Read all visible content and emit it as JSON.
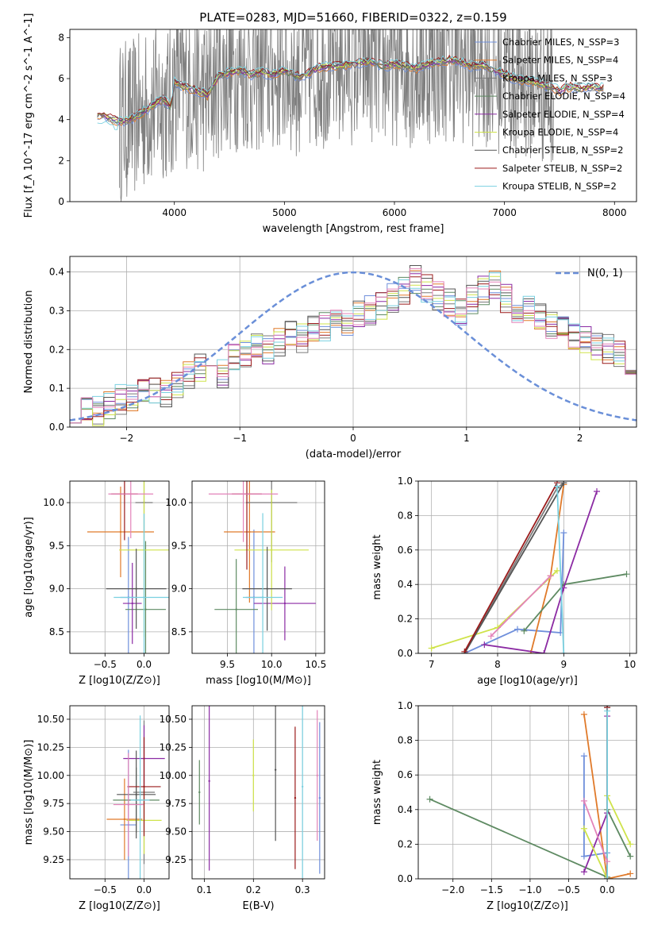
{
  "colors": [
    "#6f8fdb",
    "#e07a2a",
    "#7a7a7a",
    "#5e8a62",
    "#8b2aa3",
    "#cfe34a",
    "#555555",
    "#9b1b1b",
    "#79d0e0",
    "#e383b9"
  ],
  "chart_data": [
    {
      "type": "line",
      "title": "PLATE=0283, MJD=51660, FIBERID=0322, z=0.159",
      "xlabel": "wavelength [Angstrom, rest frame]",
      "ylabel": "Flux [f_λ 10^-17 erg cm^-2 s^-1 A^-1]",
      "xlim": [
        3050,
        8200
      ],
      "ylim": [
        0,
        8.4
      ],
      "xticks": [
        "4000",
        "5000",
        "6000",
        "7000",
        "8000"
      ],
      "yticks": [
        "0",
        "2",
        "4",
        "6",
        "8"
      ],
      "legend_position": "upper right",
      "legend": [
        "Chabrier MILES, N_SSP=3",
        "Salpeter MILES, N_SSP=4",
        "Kroupa MILES, N_SSP=3",
        "Chabrier ELODIE, N_SSP=4",
        "Salpeter ELODIE, N_SSP=4",
        "Kroupa ELODIE, N_SSP=4",
        "Chabrier STELIB, N_SSP=2",
        "Salpeter STELIB, N_SSP=2",
        "Kroupa STELIB, N_SSP=2"
      ],
      "data_note": "observed spectrum (gray, noisy) with model continua around flux 4-7",
      "model_x": [
        3300,
        3400,
        3500,
        3600,
        3700,
        3800,
        3900,
        3970,
        4000,
        4100,
        4200,
        4300,
        4400,
        4500,
        4600,
        4700,
        4800,
        4900,
        5000,
        5100,
        5200,
        5300,
        5400,
        5500,
        5600,
        5700,
        5800,
        5900,
        6000,
        6100,
        6200,
        6300,
        6400,
        6500,
        6600,
        6700,
        6800,
        6900,
        7000,
        7100,
        7200,
        7300,
        7400,
        7500,
        7600,
        7700,
        7800,
        7900
      ],
      "model_y": [
        4.3,
        4.1,
        3.9,
        4.0,
        4.3,
        4.7,
        5.0,
        4.6,
        5.8,
        5.6,
        5.4,
        5.2,
        6.1,
        6.3,
        6.4,
        6.2,
        6.3,
        6.2,
        6.4,
        6.1,
        6.2,
        6.5,
        6.6,
        6.6,
        6.7,
        6.8,
        6.8,
        6.6,
        6.7,
        6.6,
        6.5,
        6.7,
        6.8,
        6.9,
        6.8,
        6.6,
        6.7,
        6.4,
        6.2,
        6.0,
        5.9,
        5.8,
        5.6,
        5.4,
        5.6,
        5.5,
        5.6,
        5.5
      ]
    },
    {
      "type": "bar",
      "xlabel": "(data-model)/error",
      "ylabel": "Normed distribution",
      "xlim": [
        -2.5,
        2.5
      ],
      "ylim": [
        0,
        0.44
      ],
      "xticks": [
        "−2",
        "−1",
        "0",
        "1",
        "2"
      ],
      "yticks": [
        "0.0",
        "0.1",
        "0.2",
        "0.3",
        "0.4"
      ],
      "legend": [
        "N(0, 1)"
      ],
      "legend_position": "upper right",
      "bin_width": 0.1,
      "bin_start": -2.5,
      "histogram_values": [
        0.05,
        0.05,
        0.04,
        0.06,
        0.07,
        0.08,
        0.09,
        0.1,
        0.09,
        0.11,
        0.13,
        0.15,
        0.16,
        0.14,
        0.18,
        0.19,
        0.21,
        0.2,
        0.22,
        0.24,
        0.23,
        0.25,
        0.26,
        0.28,
        0.27,
        0.29,
        0.3,
        0.31,
        0.33,
        0.35,
        0.38,
        0.36,
        0.34,
        0.32,
        0.3,
        0.33,
        0.35,
        0.37,
        0.33,
        0.3,
        0.31,
        0.29,
        0.26,
        0.27,
        0.24,
        0.22,
        0.21,
        0.2,
        0.19,
        0.17,
        0.16
      ]
    },
    {
      "type": "scatter",
      "xlabel": "Z [log10(Z/Z⊙)]",
      "ylabel": "age  [log10(age/yr)]",
      "xlim": [
        -0.95,
        0.32
      ],
      "ylim": [
        8.25,
        10.25
      ],
      "xticks": [
        "−0.5",
        "0.0"
      ],
      "yticks": [
        "8.5",
        "9.0",
        "9.5",
        "10.0"
      ],
      "points": [
        [
          -0.2,
          8.9
        ],
        [
          -0.3,
          9.66
        ],
        [
          0.0,
          10.0
        ],
        [
          0.02,
          8.76
        ],
        [
          -0.15,
          8.83
        ],
        [
          0.0,
          9.45
        ],
        [
          -0.1,
          9.0
        ],
        [
          -0.25,
          10.1
        ],
        [
          0.0,
          8.9
        ],
        [
          -0.17,
          10.1
        ]
      ]
    },
    {
      "type": "scatter",
      "xlabel": "mass [log10(M/M⊙)]",
      "ylabel": "",
      "xlim": [
        9.1,
        10.6
      ],
      "ylim": [
        8.25,
        10.25
      ],
      "xticks": [
        "9.5",
        "10.0",
        "10.5"
      ],
      "yticks": [
        "8.5",
        "9.0",
        "9.5",
        "10.0"
      ],
      "points": [
        [
          9.8,
          8.9
        ],
        [
          9.75,
          9.66
        ],
        [
          10.0,
          10.0
        ],
        [
          9.6,
          8.76
        ],
        [
          10.15,
          8.83
        ],
        [
          10.0,
          9.45
        ],
        [
          9.95,
          9.0
        ],
        [
          9.72,
          10.1
        ],
        [
          9.9,
          8.9
        ],
        [
          9.68,
          10.1
        ]
      ]
    },
    {
      "type": "line",
      "xlabel": "age  [log10(age/yr)]",
      "ylabel": "mass weight",
      "xlim": [
        6.8,
        10.1
      ],
      "ylim": [
        0,
        1
      ],
      "xticks": [
        "7",
        "8",
        "9",
        "10"
      ],
      "yticks": [
        "0.0",
        "0.2",
        "0.4",
        "0.6",
        "0.8",
        "1.0"
      ],
      "series": [
        {
          "x": [
            7.5,
            8.3,
            8.95,
            9.0
          ],
          "y": [
            0.0,
            0.14,
            0.12,
            0.7
          ]
        },
        {
          "x": [
            8.5,
            8.8,
            9.0
          ],
          "y": [
            0.0,
            0.45,
            0.98
          ]
        },
        {
          "x": [
            7.5,
            8.9,
            9.0
          ],
          "y": [
            0.0,
            0.96,
            0.99
          ]
        },
        {
          "x": [
            8.4,
            9.0,
            9.95
          ],
          "y": [
            0.13,
            0.4,
            0.46
          ]
        },
        {
          "x": [
            7.8,
            8.7,
            9.0,
            9.5
          ],
          "y": [
            0.05,
            0.0,
            0.38,
            0.94
          ]
        },
        {
          "x": [
            7.0,
            8.0,
            8.9
          ],
          "y": [
            0.03,
            0.15,
            0.48
          ]
        },
        {
          "x": [
            7.5,
            9.0
          ],
          "y": [
            0.0,
            0.99
          ]
        },
        {
          "x": [
            7.5,
            8.9
          ],
          "y": [
            0.01,
            0.99
          ]
        },
        {
          "x": [
            8.9,
            9.0
          ],
          "y": [
            0.97,
            0.0
          ]
        },
        {
          "x": [
            7.9,
            8.8
          ],
          "y": [
            0.1,
            0.45
          ]
        }
      ]
    },
    {
      "type": "scatter",
      "xlabel": "Z [log10(Z/Z⊙)]",
      "ylabel": "mass [log10(M/M⊙)]",
      "xlim": [
        -0.95,
        0.32
      ],
      "ylim": [
        9.08,
        10.62
      ],
      "xticks": [
        "−0.5",
        "0.0"
      ],
      "yticks": [
        "9.25",
        "9.50",
        "9.75",
        "10.00",
        "10.25",
        "10.50"
      ],
      "points": [
        [
          -0.2,
          9.56
        ],
        [
          -0.25,
          9.61
        ],
        [
          0.0,
          9.85
        ],
        [
          -0.1,
          9.78
        ],
        [
          0.0,
          10.15
        ],
        [
          0.0,
          9.6
        ],
        [
          -0.1,
          9.83
        ],
        [
          0.0,
          9.9
        ],
        [
          -0.05,
          9.78
        ],
        [
          -0.2,
          9.74
        ]
      ]
    },
    {
      "type": "scatter",
      "xlabel": "E(B-V)",
      "ylabel": "",
      "xlim": [
        0.075,
        0.345
      ],
      "ylim": [
        9.08,
        10.62
      ],
      "xticks": [
        "0.1",
        "0.2",
        "0.3"
      ],
      "yticks": [
        "9.25",
        "9.50",
        "9.75",
        "10.00",
        "10.25",
        "10.50"
      ],
      "points": [
        [
          0.09,
          9.85
        ],
        [
          0.11,
          9.95
        ],
        [
          0.2,
          10.0
        ],
        [
          0.245,
          10.05
        ],
        [
          0.285,
          9.8
        ],
        [
          0.3,
          9.9
        ],
        [
          0.33,
          10.0
        ],
        [
          0.335,
          9.8
        ]
      ]
    },
    {
      "type": "line",
      "xlabel": "Z [log10(Z/Z⊙)]",
      "ylabel": "mass weight",
      "xlim": [
        -2.45,
        0.38
      ],
      "ylim": [
        0,
        1
      ],
      "xticks": [
        "−2.0",
        "−1.5",
        "−1.0",
        "−0.5",
        "0.0"
      ],
      "yticks": [
        "0.0",
        "0.2",
        "0.4",
        "0.6",
        "0.8",
        "1.0"
      ],
      "series": [
        {
          "x": [
            -0.3,
            -0.3,
            0.0,
            0.0
          ],
          "y": [
            0.71,
            0.13,
            0.15,
            0.0
          ]
        },
        {
          "x": [
            -0.3,
            0.0,
            0.3
          ],
          "y": [
            0.95,
            0.0,
            0.03
          ]
        },
        {
          "x": [
            0.0,
            0.0
          ],
          "y": [
            1.0,
            0.0
          ]
        },
        {
          "x": [
            -2.3,
            0.0,
            0.0,
            0.3
          ],
          "y": [
            0.46,
            0.01,
            0.4,
            0.13
          ]
        },
        {
          "x": [
            -0.3,
            0.0,
            0.0
          ],
          "y": [
            0.04,
            0.38,
            0.94
          ]
        },
        {
          "x": [
            -0.3,
            0.0,
            0.0,
            0.3
          ],
          "y": [
            0.29,
            0.0,
            0.48,
            0.2
          ]
        },
        {
          "x": [
            0.0,
            0.0
          ],
          "y": [
            0.99,
            0.0
          ]
        },
        {
          "x": [
            0.0,
            0.0
          ],
          "y": [
            0.99,
            0.0
          ]
        },
        {
          "x": [
            0.0,
            0.0
          ],
          "y": [
            0.97,
            0.0
          ]
        },
        {
          "x": [
            -0.3,
            0.0
          ],
          "y": [
            0.45,
            0.1
          ]
        }
      ]
    }
  ]
}
